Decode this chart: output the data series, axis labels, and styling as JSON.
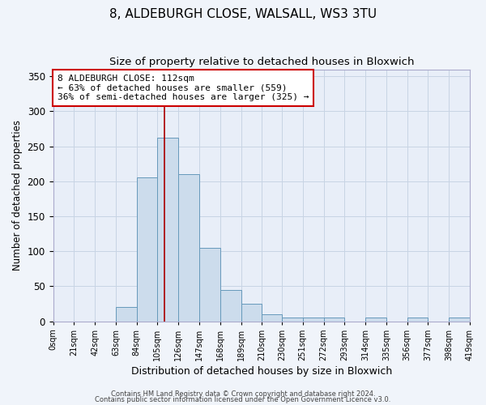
{
  "title": "8, ALDEBURGH CLOSE, WALSALL, WS3 3TU",
  "subtitle": "Size of property relative to detached houses in Bloxwich",
  "xlabel": "Distribution of detached houses by size in Bloxwich",
  "ylabel": "Number of detached properties",
  "bin_edges": [
    0,
    21,
    42,
    63,
    84,
    105,
    126,
    147,
    168,
    189,
    210,
    230,
    251,
    272,
    293,
    314,
    335,
    356,
    377,
    398,
    419
  ],
  "bin_labels": [
    "0sqm",
    "21sqm",
    "42sqm",
    "63sqm",
    "84sqm",
    "105sqm",
    "126sqm",
    "147sqm",
    "168sqm",
    "189sqm",
    "210sqm",
    "230sqm",
    "251sqm",
    "272sqm",
    "293sqm",
    "314sqm",
    "335sqm",
    "356sqm",
    "377sqm",
    "398sqm",
    "419sqm"
  ],
  "bar_values": [
    0,
    0,
    0,
    20,
    205,
    262,
    210,
    105,
    45,
    25,
    10,
    5,
    5,
    5,
    0,
    5,
    0,
    5,
    0,
    5
  ],
  "bar_color": "#ccdcec",
  "bar_edge_color": "#6699bb",
  "ylim": [
    0,
    360
  ],
  "yticks": [
    0,
    50,
    100,
    150,
    200,
    250,
    300,
    350
  ],
  "property_sqm": 112,
  "vline_color": "#aa0000",
  "annotation_text": "8 ALDEBURGH CLOSE: 112sqm\n← 63% of detached houses are smaller (559)\n36% of semi-detached houses are larger (325) →",
  "annotation_box_color": "#ffffff",
  "annotation_box_edge_color": "#cc0000",
  "grid_color": "#c8d4e4",
  "bg_color": "#e8eef8",
  "footer_text1": "Contains HM Land Registry data © Crown copyright and database right 2024.",
  "footer_text2": "Contains public sector information licensed under the Open Government Licence v3.0.",
  "title_fontsize": 11,
  "subtitle_fontsize": 9.5,
  "xlabel_fontsize": 9,
  "ylabel_fontsize": 8.5,
  "annot_fontsize": 8
}
